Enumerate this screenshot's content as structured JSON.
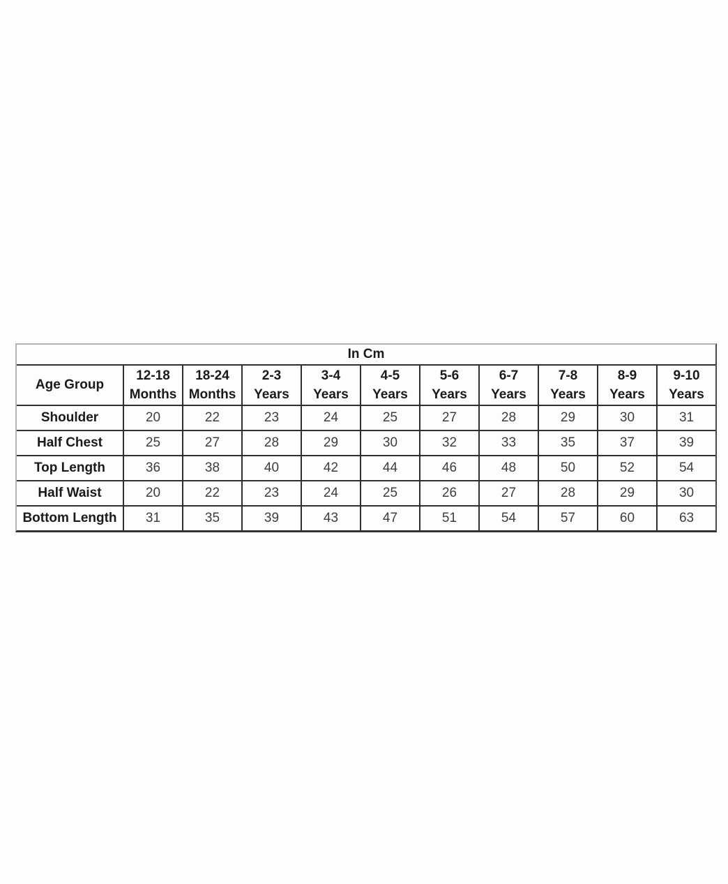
{
  "page": {
    "background": "#fefefe"
  },
  "table": {
    "unit_header": "In Cm",
    "corner_header": "Age Group",
    "columns": [
      "12-18\nMonths",
      "18-24\nMonths",
      "2-3\nYears",
      "3-4\nYears",
      "4-5\nYears",
      "5-6\nYears",
      "6-7\nYears",
      "7-8\nYears",
      "8-9\nYears",
      "9-10\nYears"
    ],
    "rows": [
      {
        "label": "Shoulder",
        "values": [
          "20",
          "22",
          "23",
          "24",
          "25",
          "27",
          "28",
          "29",
          "30",
          "31"
        ]
      },
      {
        "label": "Half Chest",
        "values": [
          "25",
          "27",
          "28",
          "29",
          "30",
          "32",
          "33",
          "35",
          "37",
          "39"
        ]
      },
      {
        "label": "Top Length",
        "values": [
          "36",
          "38",
          "40",
          "42",
          "44",
          "46",
          "48",
          "50",
          "52",
          "54"
        ]
      },
      {
        "label": "Half Waist",
        "values": [
          "20",
          "22",
          "23",
          "24",
          "25",
          "26",
          "27",
          "28",
          "29",
          "30"
        ]
      },
      {
        "label": "Bottom Length",
        "values": [
          "31",
          "35",
          "39",
          "43",
          "47",
          "51",
          "54",
          "57",
          "60",
          "63"
        ]
      }
    ],
    "colors": {
      "border_inner": "#2e2e2e",
      "border_outer_light": "#b3b3b3",
      "border_outer_dark": "#333333",
      "header_text": "#1a1a1a",
      "value_text": "#3d3d3d"
    }
  },
  "chart_data": {
    "type": "table",
    "title": "In Cm",
    "categories": [
      "12-18 Months",
      "18-24 Months",
      "2-3 Years",
      "3-4 Years",
      "4-5 Years",
      "5-6 Years",
      "6-7 Years",
      "7-8 Years",
      "8-9 Years",
      "9-10 Years"
    ],
    "series": [
      {
        "name": "Shoulder",
        "values": [
          20,
          22,
          23,
          24,
          25,
          27,
          28,
          29,
          30,
          31
        ]
      },
      {
        "name": "Half Chest",
        "values": [
          25,
          27,
          28,
          29,
          30,
          32,
          33,
          35,
          37,
          39
        ]
      },
      {
        "name": "Top Length",
        "values": [
          36,
          38,
          40,
          42,
          44,
          46,
          48,
          50,
          52,
          54
        ]
      },
      {
        "name": "Half Waist",
        "values": [
          20,
          22,
          23,
          24,
          25,
          26,
          27,
          28,
          29,
          30
        ]
      },
      {
        "name": "Bottom Length",
        "values": [
          31,
          35,
          39,
          43,
          47,
          51,
          54,
          57,
          60,
          63
        ]
      }
    ]
  }
}
